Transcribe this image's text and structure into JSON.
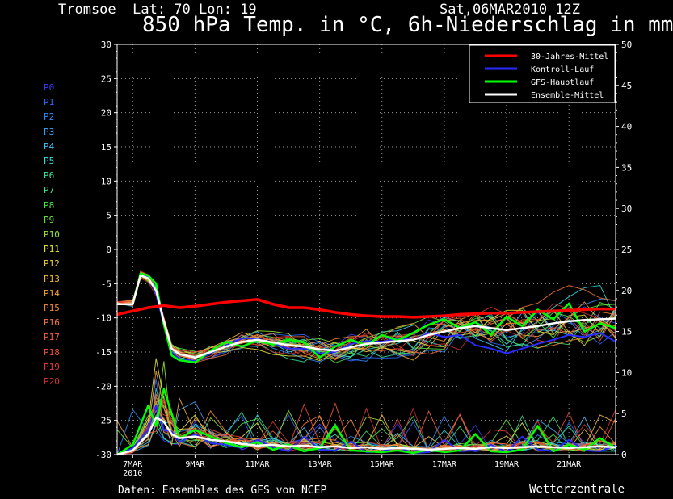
{
  "header": {
    "location": "Tromsoe  Lat: 70 Lon: 19",
    "datetime": "Sat,06MAR2010 12Z",
    "title": "850 hPa Temp. in °C, 6h-Niederschlag in mm"
  },
  "footer": {
    "source": "Daten: Ensembles des GFS von NCEP",
    "brand": "Wetterzentrale"
  },
  "colors": {
    "background": "#000000",
    "grid": "#9a9a9a",
    "clim": "#ff0000",
    "control": "#2a2aff",
    "gfs": "#00ff00",
    "ensemble_mean": "#ffffff"
  },
  "members": [
    {
      "name": "P0",
      "color": "#3d3dff"
    },
    {
      "name": "P1",
      "color": "#2f6bff"
    },
    {
      "name": "P2",
      "color": "#2f8dff"
    },
    {
      "name": "P3",
      "color": "#3aa8ff"
    },
    {
      "name": "P4",
      "color": "#3fc6ff"
    },
    {
      "name": "P5",
      "color": "#35e0e0"
    },
    {
      "name": "P6",
      "color": "#38e8a0"
    },
    {
      "name": "P7",
      "color": "#3fe87a"
    },
    {
      "name": "P8",
      "color": "#4ae84a"
    },
    {
      "name": "P9",
      "color": "#6be83a"
    },
    {
      "name": "P10",
      "color": "#9ae83a"
    },
    {
      "name": "P11",
      "color": "#e8e83a"
    },
    {
      "name": "P12",
      "color": "#f0d23a"
    },
    {
      "name": "P13",
      "color": "#f5b83a"
    },
    {
      "name": "P14",
      "color": "#f5a03a"
    },
    {
      "name": "P15",
      "color": "#f58a3a"
    },
    {
      "name": "P16",
      "color": "#f5763a"
    },
    {
      "name": "P17",
      "color": "#f5623a"
    },
    {
      "name": "P18",
      "color": "#f04e3a"
    },
    {
      "name": "P19",
      "color": "#e53a3a"
    },
    {
      "name": "P20",
      "color": "#d03030"
    }
  ],
  "chart_data": {
    "type": "line",
    "x_label_year": "2010",
    "x_ticks": [
      {
        "label": "7MAR",
        "day": 7
      },
      {
        "label": "9MAR",
        "day": 9
      },
      {
        "label": "11MAR",
        "day": 11
      },
      {
        "label": "13MAR",
        "day": 13
      },
      {
        "label": "15MAR",
        "day": 15
      },
      {
        "label": "17MAR",
        "day": 17
      },
      {
        "label": "19MAR",
        "day": 19
      },
      {
        "label": "21MAR",
        "day": 21
      }
    ],
    "xlim": [
      6.5,
      22.5
    ],
    "y_left": {
      "unit": "°C",
      "range": [
        -30,
        30
      ],
      "ticks": [
        30,
        25,
        20,
        15,
        10,
        5,
        0,
        -5,
        -10,
        -15,
        -20,
        -25,
        -30
      ]
    },
    "y_right": {
      "unit": "mm",
      "range": [
        0,
        50
      ],
      "ticks": [
        50,
        45,
        40,
        35,
        30,
        25,
        20,
        15,
        10,
        5,
        0
      ]
    },
    "grid": true,
    "legend_position": "top-right",
    "legend": [
      {
        "label": "30-Jahres-Mittel",
        "color": "#ff0000"
      },
      {
        "label": "Kontroll-Lauf",
        "color": "#2a2aff"
      },
      {
        "label": "GFS-Hauptlauf",
        "color": "#00ff00"
      },
      {
        "label": "Ensemble-Mittel",
        "color": "#ffffff"
      }
    ],
    "climatology": {
      "x": [
        6.5,
        7,
        7.5,
        8,
        8.5,
        9,
        9.5,
        10,
        10.5,
        11,
        11.5,
        12,
        12.5,
        13,
        13.5,
        14,
        14.5,
        15,
        15.5,
        16,
        16.5,
        17,
        17.5,
        18,
        18.5,
        19,
        19.5,
        20,
        20.5,
        21,
        21.5,
        22,
        22.5
      ],
      "y": [
        -9.5,
        -9,
        -8.5,
        -8.2,
        -8.5,
        -8.3,
        -8,
        -7.7,
        -7.5,
        -7.3,
        -8,
        -8.5,
        -8.5,
        -8.8,
        -9.2,
        -9.5,
        -9.7,
        -9.8,
        -9.8,
        -9.9,
        -9.8,
        -9.7,
        -9.5,
        -9.4,
        -9.3,
        -9.3,
        -9.2,
        -9.1,
        -9,
        -8.9,
        -8.8,
        -8.7,
        -8.7
      ]
    },
    "ensemble_mean_temp": {
      "x": [
        6.5,
        7,
        7.25,
        7.5,
        7.75,
        8,
        8.25,
        8.5,
        9,
        9.5,
        10,
        10.5,
        11,
        11.5,
        12,
        12.5,
        13,
        13.5,
        14,
        14.5,
        15,
        15.5,
        16,
        16.5,
        17,
        17.5,
        18,
        18.5,
        19,
        19.5,
        20,
        20.5,
        21,
        21.5,
        22,
        22.5
      ],
      "y": [
        -8,
        -8,
        -3.8,
        -4.2,
        -6,
        -10.5,
        -14.5,
        -15.3,
        -15.8,
        -15,
        -14.2,
        -13.5,
        -13.2,
        -13.6,
        -14,
        -14.2,
        -14.6,
        -14.8,
        -14.3,
        -13.8,
        -13.6,
        -13.4,
        -13.2,
        -12.5,
        -12,
        -11.5,
        -11.2,
        -11.5,
        -11.8,
        -11.5,
        -11.2,
        -10.8,
        -10.5,
        -10.3,
        -10.2,
        -10.1
      ]
    },
    "control_temp": {
      "x": [
        6.5,
        7,
        7.25,
        7.5,
        7.75,
        8,
        8.25,
        8.5,
        9,
        9.5,
        10,
        10.5,
        11,
        11.5,
        12,
        12.5,
        13,
        13.5,
        14,
        14.5,
        15,
        15.5,
        16,
        16.5,
        17,
        17.5,
        18,
        18.5,
        19,
        19.5,
        20,
        20.5,
        21,
        21.5,
        22,
        22.5
      ],
      "y": [
        -8,
        -8,
        -3.6,
        -4,
        -6.5,
        -11,
        -15,
        -16,
        -16.3,
        -15.2,
        -14,
        -13,
        -13,
        -13.8,
        -14.5,
        -14.5,
        -15.2,
        -15,
        -13.8,
        -13.4,
        -13.5,
        -13,
        -13.2,
        -12.2,
        -12.8,
        -12.5,
        -14,
        -14.5,
        -15.2,
        -14.5,
        -13.8,
        -13.2,
        -12.5,
        -12.8,
        -12.2,
        -13.5
      ]
    },
    "gfs_temp": {
      "x": [
        6.5,
        7,
        7.25,
        7.5,
        7.75,
        8,
        8.25,
        8.5,
        9,
        9.5,
        10,
        10.5,
        11,
        11.5,
        12,
        12.5,
        13,
        13.5,
        14,
        14.5,
        15,
        15.5,
        16,
        16.5,
        17,
        17.5,
        18,
        18.5,
        19,
        19.5,
        20,
        20.5,
        21,
        21.5,
        22,
        22.5
      ],
      "y": [
        -8,
        -8,
        -3.5,
        -3.8,
        -5,
        -11,
        -15.5,
        -16.2,
        -16.5,
        -14.8,
        -13.5,
        -14.2,
        -13.3,
        -13.9,
        -13.2,
        -13.6,
        -15.8,
        -14.2,
        -13.2,
        -14,
        -12.5,
        -13.3,
        -12.2,
        -11,
        -10.2,
        -11.5,
        -10.6,
        -12.5,
        -9.8,
        -11.2,
        -8.8,
        -10.2,
        -7.9,
        -12,
        -10.8,
        -11.5
      ]
    },
    "ensemble_mean_precip": {
      "x": [
        6.5,
        7,
        7.5,
        7.75,
        8,
        8.25,
        8.5,
        9,
        9.5,
        10,
        10.5,
        11,
        11.5,
        12,
        12.5,
        13,
        13.5,
        14,
        14.5,
        15,
        15.5,
        16,
        16.5,
        17,
        17.5,
        18,
        18.5,
        19,
        19.5,
        20,
        20.5,
        21,
        21.5,
        22,
        22.5
      ],
      "y": [
        0,
        0.5,
        2.5,
        4.5,
        4,
        2.5,
        2,
        2.2,
        1.8,
        1.6,
        1.3,
        1.1,
        1.2,
        1,
        1.1,
        0.9,
        1,
        0.8,
        0.9,
        0.7,
        0.8,
        0.7,
        0.6,
        0.7,
        0.8,
        0.7,
        0.9,
        0.8,
        0.9,
        1,
        0.9,
        0.8,
        0.9,
        1,
        0.9
      ]
    },
    "control_precip": {
      "x": [
        6.5,
        7,
        7.5,
        7.75,
        8,
        8.25,
        8.5,
        9,
        9.5,
        10,
        10.5,
        11,
        11.5,
        12,
        12.5,
        13,
        13.5,
        14,
        14.5,
        15,
        15.5,
        16,
        16.5,
        17,
        17.5,
        18,
        18.5,
        19,
        19.5,
        20,
        20.5,
        21,
        21.5,
        22,
        22.5
      ],
      "y": [
        0,
        0.8,
        3,
        6,
        3,
        2.8,
        1.5,
        2.5,
        1.4,
        1.2,
        0.8,
        1.8,
        0.9,
        0.4,
        2.2,
        0.6,
        0.5,
        1.6,
        0.3,
        0.4,
        0.9,
        0.2,
        0.3,
        1.8,
        0.4,
        0.5,
        1.2,
        0.3,
        2.2,
        0.6,
        0.4,
        1.8,
        0.5,
        0.4,
        1.1
      ]
    },
    "gfs_precip": {
      "x": [
        6.5,
        7,
        7.5,
        7.75,
        8,
        8.25,
        8.5,
        9,
        9.5,
        10,
        10.5,
        11,
        11.5,
        12,
        12.5,
        13,
        13.5,
        14,
        14.5,
        15,
        15.5,
        16,
        16.5,
        17,
        17.5,
        18,
        18.5,
        19,
        19.5,
        20,
        20.5,
        21,
        21.5,
        22,
        22.5
      ],
      "y": [
        0,
        1.2,
        6,
        3.5,
        8,
        5,
        2,
        3,
        2.2,
        1.4,
        0.9,
        1.5,
        0.6,
        1.2,
        0.4,
        0.8,
        3.5,
        0.5,
        0.4,
        0.3,
        0.5,
        0.2,
        0.6,
        0.3,
        0.5,
        2.5,
        0.4,
        0.3,
        0.6,
        3.5,
        0.4,
        1.2,
        0.6,
        2,
        0.8
      ]
    }
  }
}
